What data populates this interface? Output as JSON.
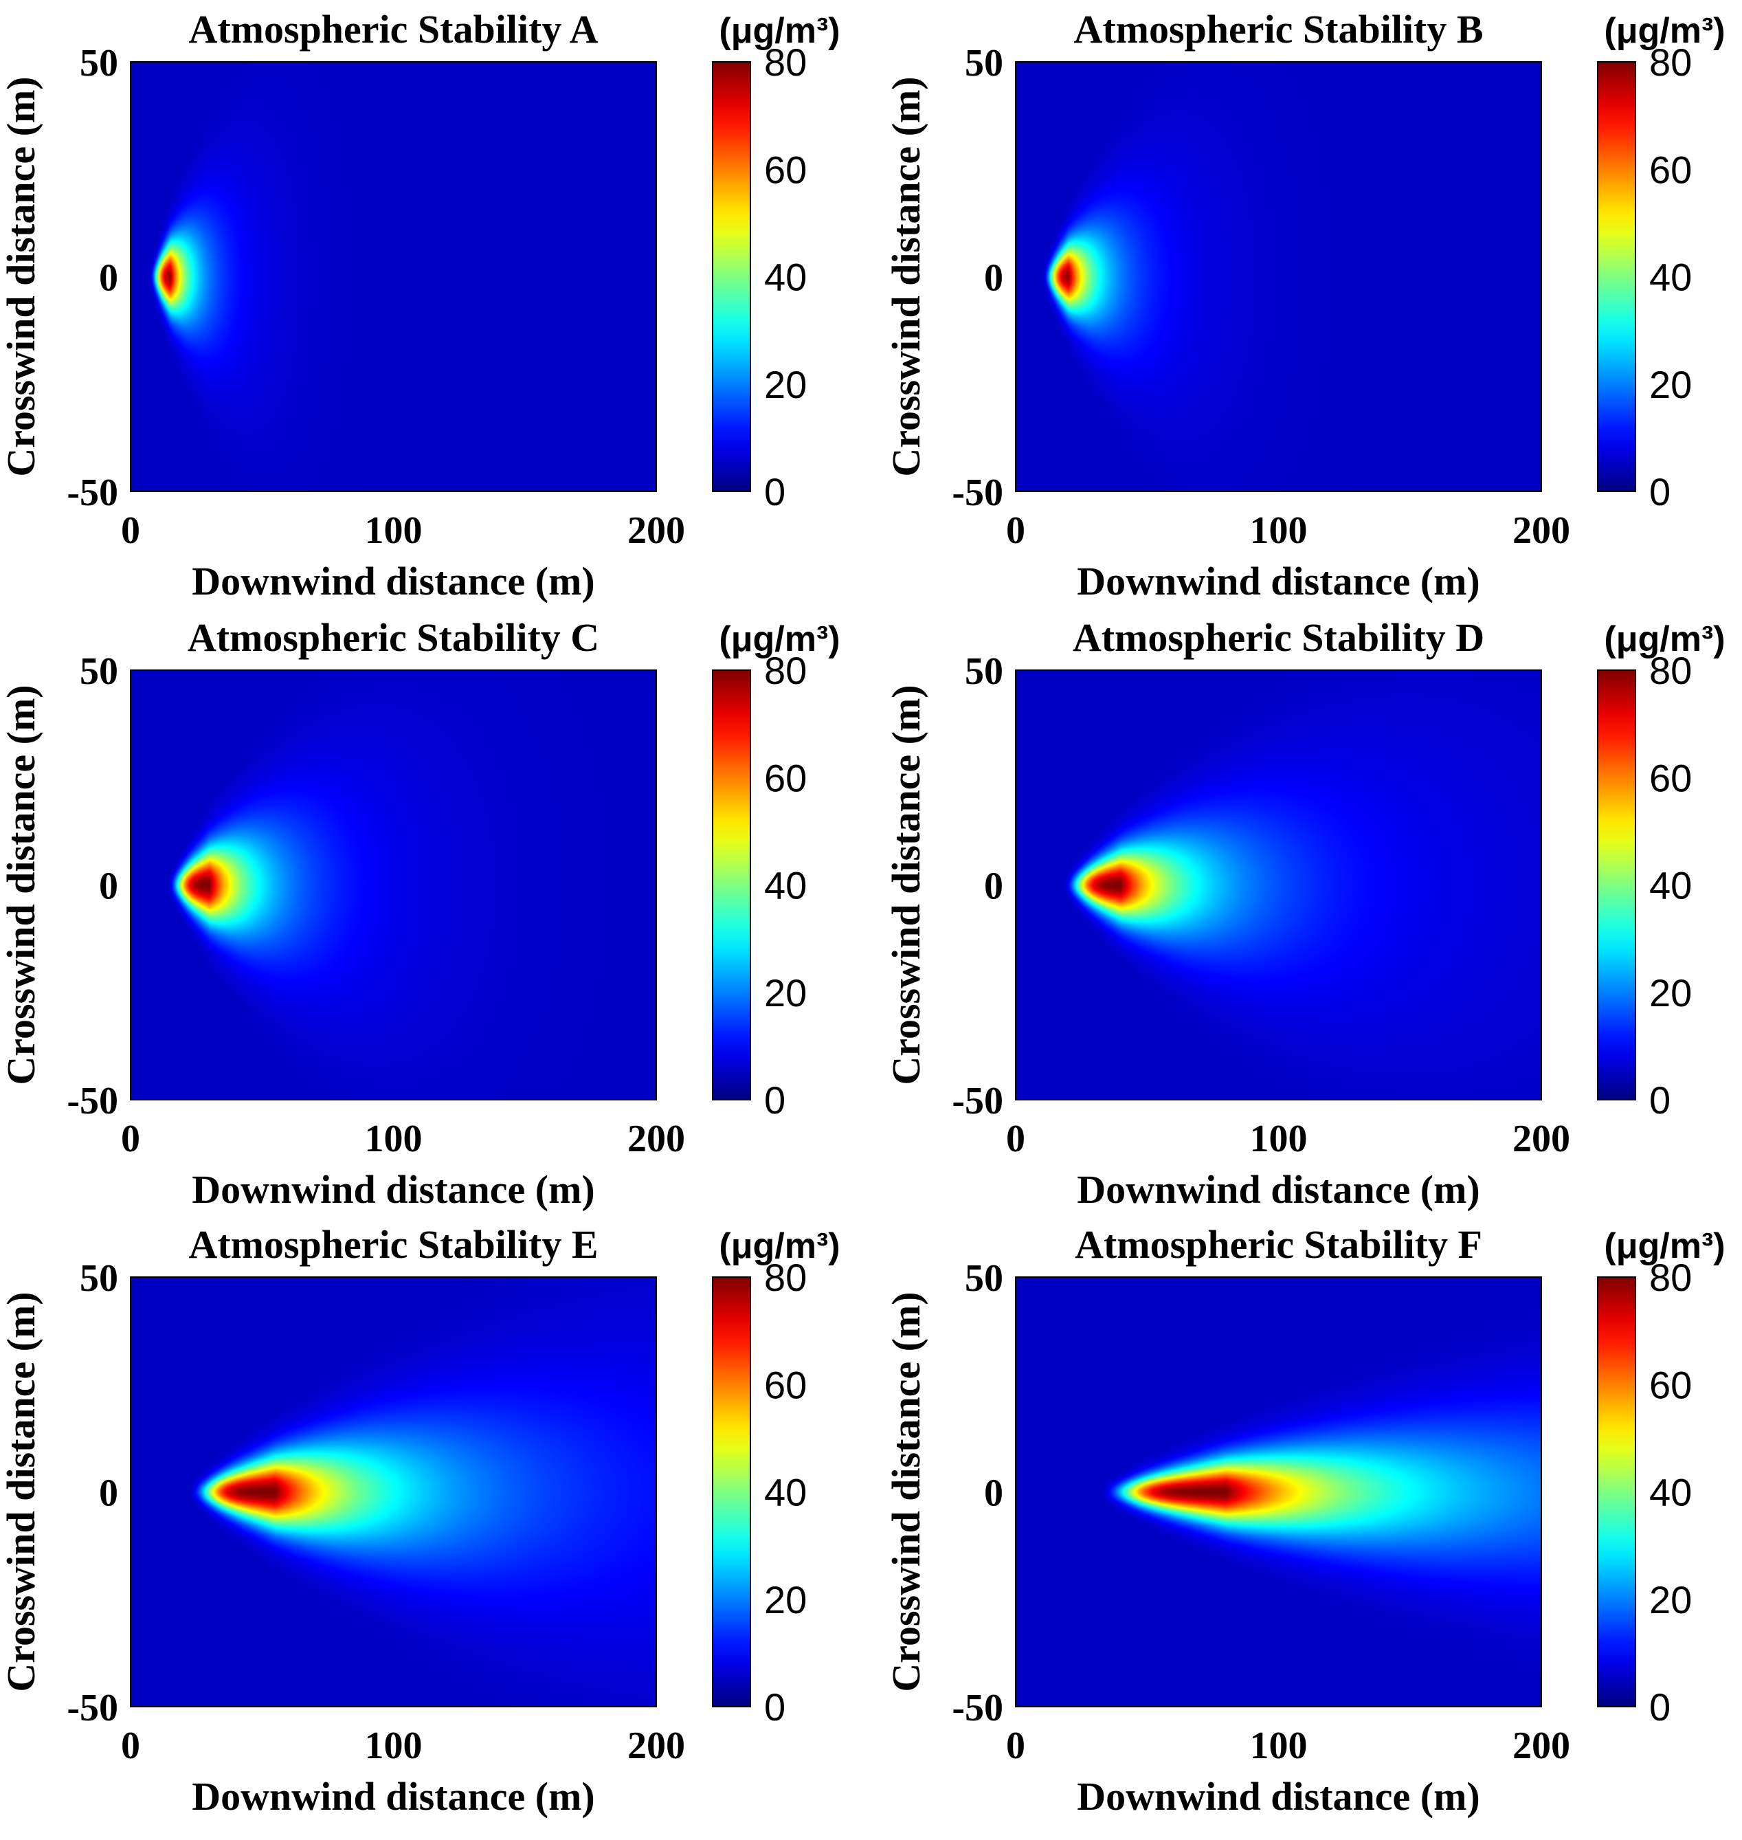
{
  "figure": {
    "x_label": "Downwind distance (m)",
    "y_label": "Crosswind distance (m)",
    "colorbar_unit": "(μg/m³)",
    "colormap": "jet",
    "colorbar_ticks": [
      "0",
      "20",
      "40",
      "60",
      "80"
    ],
    "x_ticks": [
      "0",
      "100",
      "200"
    ],
    "y_ticks": [
      "50",
      "0",
      "-50"
    ]
  },
  "chart_data": [
    {
      "type": "heatmap",
      "title": "Atmospheric Stability A",
      "xlabel": "Downwind distance (m)",
      "ylabel": "Crosswind distance (m)",
      "xlim": [
        0,
        200
      ],
      "ylim": [
        -50,
        50
      ],
      "clim": [
        0,
        80
      ],
      "colorbar_label": "(μg/m³)",
      "plume": {
        "peak_x_m": 15,
        "peak_value": 80,
        "rise_scale_m": 4,
        "decay_scale_m": 20,
        "spread_base_m": 1,
        "spread_per_m": 0.55,
        "onset_x_m": 7
      }
    },
    {
      "type": "heatmap",
      "title": "Atmospheric Stability B",
      "xlabel": "Downwind distance (m)",
      "ylabel": "Crosswind distance (m)",
      "xlim": [
        0,
        200
      ],
      "ylim": [
        -50,
        50
      ],
      "clim": [
        0,
        80
      ],
      "colorbar_label": "(μg/m³)",
      "plume": {
        "peak_x_m": 20,
        "peak_value": 80,
        "rise_scale_m": 5,
        "decay_scale_m": 30,
        "spread_base_m": 1,
        "spread_per_m": 0.42,
        "onset_x_m": 10
      }
    },
    {
      "type": "heatmap",
      "title": "Atmospheric Stability C",
      "xlabel": "Downwind distance (m)",
      "ylabel": "Crosswind distance (m)",
      "xlim": [
        0,
        200
      ],
      "ylim": [
        -50,
        50
      ],
      "clim": [
        0,
        80
      ],
      "colorbar_label": "(μg/m³)",
      "plume": {
        "peak_x_m": 30,
        "peak_value": 80,
        "rise_scale_m": 6,
        "decay_scale_m": 45,
        "spread_base_m": 1,
        "spread_per_m": 0.3,
        "onset_x_m": 14
      }
    },
    {
      "type": "heatmap",
      "title": "Atmospheric Stability D",
      "xlabel": "Downwind distance (m)",
      "ylabel": "Crosswind distance (m)",
      "xlim": [
        0,
        200
      ],
      "ylim": [
        -50,
        50
      ],
      "clim": [
        0,
        80
      ],
      "colorbar_label": "(μg/m³)",
      "plume": {
        "peak_x_m": 40,
        "peak_value": 80,
        "rise_scale_m": 8,
        "decay_scale_m": 80,
        "spread_base_m": 1,
        "spread_per_m": 0.2,
        "onset_x_m": 18
      }
    },
    {
      "type": "heatmap",
      "title": "Atmospheric Stability E",
      "xlabel": "Downwind distance (m)",
      "ylabel": "Crosswind distance (m)",
      "xlim": [
        0,
        200
      ],
      "ylim": [
        -50,
        50
      ],
      "clim": [
        0,
        80
      ],
      "colorbar_label": "(μg/m³)",
      "plume": {
        "peak_x_m": 55,
        "peak_value": 80,
        "rise_scale_m": 10,
        "decay_scale_m": 140,
        "spread_base_m": 1,
        "spread_per_m": 0.14,
        "onset_x_m": 22
      }
    },
    {
      "type": "heatmap",
      "title": "Atmospheric Stability F",
      "xlabel": "Downwind distance (m)",
      "ylabel": "Crosswind distance (m)",
      "xlim": [
        0,
        200
      ],
      "ylim": [
        -50,
        50
      ],
      "clim": [
        0,
        80
      ],
      "colorbar_label": "(μg/m³)",
      "plume": {
        "peak_x_m": 80,
        "peak_value": 80,
        "rise_scale_m": 14,
        "decay_scale_m": 220,
        "spread_base_m": 1,
        "spread_per_m": 0.085,
        "onset_x_m": 32
      }
    }
  ]
}
